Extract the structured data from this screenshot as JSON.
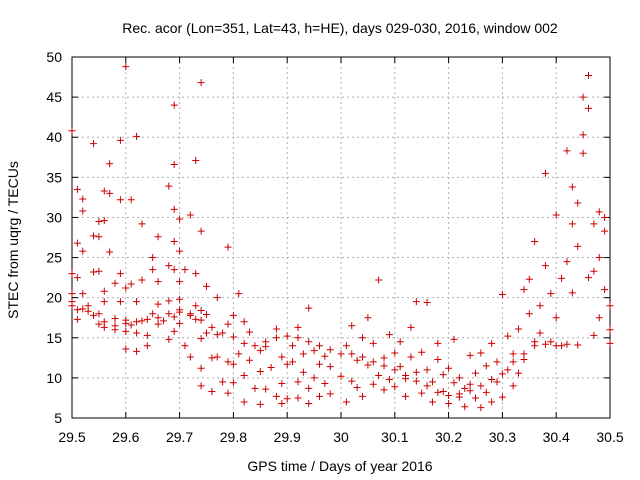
{
  "chart_data": {
    "type": "scatter",
    "title": "Rec. acor (Lon=351, Lat=43, h=HE), days 029-030, 2016, window 002",
    "xlabel": "GPS time / Days of year 2016",
    "ylabel": "STEC from uqrg / TECUs",
    "xlim": [
      29.5,
      30.5
    ],
    "ylim": [
      5,
      50
    ],
    "xticks": [
      29.5,
      29.6,
      29.7,
      29.8,
      29.9,
      30.0,
      30.1,
      30.2,
      30.3,
      30.4,
      30.5
    ],
    "xtick_labels": [
      "29.5",
      "29.6",
      "29.7",
      "29.8",
      "29.9",
      "30",
      "30.1",
      "30.2",
      "30.3",
      "30.4",
      "30.5"
    ],
    "yticks": [
      5,
      10,
      15,
      20,
      25,
      30,
      35,
      40,
      45,
      50
    ],
    "ytick_labels": [
      "5",
      "10",
      "15",
      "20",
      "25",
      "30",
      "35",
      "40",
      "45",
      "50"
    ],
    "grid": true,
    "legend": "none",
    "marker": "plus",
    "marker_color": "#cc0000",
    "series": [
      {
        "points": [
          [
            29.5,
            40.8
          ],
          [
            29.5,
            23.0
          ],
          [
            29.5,
            20.5
          ],
          [
            29.5,
            19.5
          ],
          [
            29.51,
            33.5
          ],
          [
            29.51,
            26.8
          ],
          [
            29.51,
            22.5
          ],
          [
            29.51,
            18.5
          ],
          [
            29.51,
            17.3
          ],
          [
            29.52,
            32.3
          ],
          [
            29.52,
            30.8
          ],
          [
            29.52,
            25.8
          ],
          [
            29.52,
            20.5
          ],
          [
            29.53,
            19.0
          ],
          [
            29.53,
            18.3
          ],
          [
            29.54,
            39.2
          ],
          [
            29.54,
            27.7
          ],
          [
            29.54,
            23.2
          ],
          [
            29.55,
            29.5
          ],
          [
            29.55,
            27.6
          ],
          [
            29.55,
            23.3
          ],
          [
            29.55,
            18.0
          ],
          [
            29.55,
            16.7
          ],
          [
            29.56,
            33.3
          ],
          [
            29.56,
            29.6
          ],
          [
            29.56,
            20.8
          ],
          [
            29.56,
            19.5
          ],
          [
            29.56,
            16.3
          ],
          [
            29.57,
            36.7
          ],
          [
            29.57,
            33.0
          ],
          [
            29.57,
            25.7
          ],
          [
            29.58,
            21.8
          ],
          [
            29.58,
            17.4
          ],
          [
            29.58,
            16.0
          ],
          [
            29.59,
            39.6
          ],
          [
            29.59,
            32.2
          ],
          [
            29.59,
            23.0
          ],
          [
            29.59,
            19.5
          ],
          [
            29.6,
            48.8
          ],
          [
            29.6,
            21.2
          ],
          [
            29.6,
            17.2
          ],
          [
            29.6,
            15.8
          ],
          [
            29.6,
            13.6
          ],
          [
            29.61,
            32.2
          ],
          [
            29.61,
            21.7
          ],
          [
            29.61,
            16.6
          ],
          [
            29.62,
            40.1
          ],
          [
            29.62,
            19.5
          ],
          [
            29.62,
            15.6
          ],
          [
            29.62,
            13.3
          ],
          [
            29.63,
            29.2
          ],
          [
            29.63,
            22.2
          ],
          [
            29.63,
            17.1
          ],
          [
            29.64,
            14.0
          ],
          [
            29.64,
            15.3
          ],
          [
            29.65,
            25.0
          ],
          [
            29.65,
            23.5
          ],
          [
            29.65,
            18.0
          ],
          [
            29.66,
            27.6
          ],
          [
            29.66,
            22.0
          ],
          [
            29.66,
            19.2
          ],
          [
            29.66,
            16.7
          ],
          [
            29.67,
            17.1
          ],
          [
            29.68,
            33.9
          ],
          [
            29.68,
            24.0
          ],
          [
            29.68,
            19.6
          ],
          [
            29.68,
            14.8
          ],
          [
            29.69,
            36.6
          ],
          [
            29.69,
            31.0
          ],
          [
            29.69,
            27.0
          ],
          [
            29.69,
            23.5
          ],
          [
            29.69,
            17.6
          ],
          [
            29.69,
            15.8
          ],
          [
            29.69,
            44.0
          ],
          [
            29.7,
            29.8
          ],
          [
            29.7,
            25.8
          ],
          [
            29.7,
            22.0
          ],
          [
            29.7,
            19.8
          ],
          [
            29.7,
            18.2
          ],
          [
            29.7,
            16.8
          ],
          [
            29.71,
            23.5
          ],
          [
            29.71,
            14.0
          ],
          [
            29.72,
            30.3
          ],
          [
            29.72,
            18.0
          ],
          [
            29.72,
            12.6
          ],
          [
            29.73,
            37.1
          ],
          [
            29.73,
            23.0
          ],
          [
            29.73,
            19.0
          ],
          [
            29.73,
            17.3
          ],
          [
            29.74,
            46.8
          ],
          [
            29.74,
            28.3
          ],
          [
            29.74,
            18.4
          ],
          [
            29.74,
            14.9
          ],
          [
            29.74,
            11.2
          ],
          [
            29.74,
            9.0
          ],
          [
            29.75,
            21.4
          ],
          [
            29.75,
            17.9
          ],
          [
            29.75,
            15.6
          ],
          [
            29.76,
            12.5
          ],
          [
            29.76,
            8.3
          ],
          [
            29.77,
            20.0
          ],
          [
            29.77,
            15.4
          ],
          [
            29.77,
            12.6
          ],
          [
            29.78,
            9.5
          ],
          [
            29.79,
            26.3
          ],
          [
            29.79,
            16.7
          ],
          [
            29.79,
            12.0
          ],
          [
            29.79,
            8.1
          ],
          [
            29.8,
            17.8
          ],
          [
            29.8,
            11.7
          ],
          [
            29.8,
            9.4
          ],
          [
            29.81,
            20.5
          ],
          [
            29.81,
            13.0
          ],
          [
            29.82,
            17.0
          ],
          [
            29.82,
            10.3
          ],
          [
            29.82,
            7.0
          ],
          [
            29.83,
            15.7
          ],
          [
            29.83,
            12.2
          ],
          [
            29.84,
            8.7
          ],
          [
            29.85,
            13.4
          ],
          [
            29.85,
            10.8
          ],
          [
            29.85,
            6.7
          ],
          [
            29.86,
            13.9
          ],
          [
            29.86,
            8.6
          ],
          [
            29.87,
            11.3
          ],
          [
            29.88,
            16.1
          ],
          [
            29.88,
            7.7
          ],
          [
            29.89,
            12.6
          ],
          [
            29.89,
            9.3
          ],
          [
            29.89,
            6.8
          ],
          [
            29.9,
            11.7
          ],
          [
            29.9,
            7.4
          ],
          [
            29.91,
            14.0
          ],
          [
            29.91,
            12.0
          ],
          [
            29.92,
            16.3
          ],
          [
            29.92,
            9.5
          ],
          [
            29.92,
            7.5
          ],
          [
            29.93,
            10.7
          ],
          [
            29.93,
            13.0
          ],
          [
            29.94,
            18.7
          ],
          [
            29.94,
            8.7
          ],
          [
            29.94,
            6.8
          ],
          [
            29.95,
            13.4
          ],
          [
            29.95,
            10.0
          ],
          [
            29.96,
            11.7
          ],
          [
            29.96,
            7.7
          ],
          [
            29.97,
            9.3
          ],
          [
            29.97,
            12.7
          ],
          [
            29.98,
            11.4
          ],
          [
            29.98,
            8.0
          ],
          [
            30.0,
            13.0
          ],
          [
            30.0,
            10.2
          ],
          [
            30.01,
            7.0
          ],
          [
            30.01,
            14.0
          ],
          [
            30.02,
            9.6
          ],
          [
            30.02,
            16.5
          ],
          [
            30.03,
            12.2
          ],
          [
            30.03,
            8.8
          ],
          [
            30.04,
            7.7
          ],
          [
            30.04,
            15.0
          ],
          [
            30.05,
            11.6
          ],
          [
            30.05,
            17.5
          ],
          [
            30.06,
            9.2
          ],
          [
            30.06,
            14.3
          ],
          [
            30.07,
            22.2
          ],
          [
            30.07,
            10.3
          ],
          [
            30.08,
            8.5
          ],
          [
            30.08,
            12.5
          ],
          [
            30.09,
            9.8
          ],
          [
            30.09,
            15.4
          ],
          [
            30.1,
            13.1
          ],
          [
            30.1,
            8.9
          ],
          [
            30.11,
            11.4
          ],
          [
            30.11,
            14.5
          ],
          [
            30.12,
            9.9
          ],
          [
            30.12,
            7.7
          ],
          [
            30.13,
            12.6
          ],
          [
            30.13,
            16.3
          ],
          [
            30.14,
            19.5
          ],
          [
            30.14,
            10.7
          ],
          [
            30.15,
            8.1
          ],
          [
            30.15,
            13.2
          ],
          [
            30.16,
            19.4
          ],
          [
            30.16,
            11.0
          ],
          [
            30.17,
            9.5
          ],
          [
            30.17,
            7.0
          ],
          [
            30.18,
            12.3
          ],
          [
            30.18,
            14.3
          ],
          [
            30.19,
            10.4
          ],
          [
            30.19,
            8.3
          ],
          [
            30.2,
            6.8
          ],
          [
            30.2,
            11.2
          ],
          [
            30.21,
            9.4
          ],
          [
            30.21,
            14.8
          ],
          [
            30.22,
            7.6
          ],
          [
            30.22,
            10.0
          ],
          [
            30.23,
            8.7
          ],
          [
            30.23,
            6.4
          ],
          [
            30.24,
            9.2
          ],
          [
            30.24,
            12.8
          ],
          [
            30.25,
            7.5
          ],
          [
            30.25,
            10.6
          ],
          [
            30.26,
            6.3
          ],
          [
            30.26,
            13.1
          ],
          [
            30.27,
            8.2
          ],
          [
            30.27,
            11.5
          ],
          [
            30.28,
            7.0
          ],
          [
            30.28,
            14.3
          ],
          [
            30.29,
            9.5
          ],
          [
            30.29,
            12.0
          ],
          [
            30.3,
            7.6
          ],
          [
            30.3,
            20.4
          ],
          [
            30.31,
            11.0
          ],
          [
            30.31,
            15.2
          ],
          [
            30.32,
            13.0
          ],
          [
            30.32,
            9.0
          ],
          [
            30.33,
            16.1
          ],
          [
            30.33,
            10.6
          ],
          [
            30.34,
            21.0
          ],
          [
            30.34,
            12.3
          ],
          [
            30.35,
            18.0
          ],
          [
            30.35,
            22.3
          ],
          [
            30.36,
            14.0
          ],
          [
            30.36,
            27.0
          ],
          [
            30.37,
            15.6
          ],
          [
            30.37,
            19.0
          ],
          [
            30.38,
            35.5
          ],
          [
            30.38,
            24.0
          ],
          [
            30.39,
            14.5
          ],
          [
            30.39,
            20.5
          ],
          [
            30.4,
            30.3
          ],
          [
            30.4,
            17.5
          ],
          [
            30.41,
            14.0
          ],
          [
            30.41,
            22.4
          ],
          [
            30.42,
            38.3
          ],
          [
            30.42,
            24.5
          ],
          [
            30.43,
            33.8
          ],
          [
            30.43,
            29.2
          ],
          [
            30.43,
            20.6
          ],
          [
            30.44,
            31.8
          ],
          [
            30.44,
            26.4
          ],
          [
            30.45,
            45.0
          ],
          [
            30.45,
            40.3
          ],
          [
            30.45,
            38.0
          ],
          [
            30.46,
            47.7
          ],
          [
            30.46,
            43.6
          ],
          [
            30.46,
            22.5
          ],
          [
            30.47,
            29.2
          ],
          [
            30.47,
            23.3
          ],
          [
            30.48,
            30.7
          ],
          [
            30.48,
            25.0
          ],
          [
            30.48,
            17.5
          ],
          [
            30.49,
            30.0
          ],
          [
            30.49,
            28.3
          ],
          [
            30.49,
            21.0
          ],
          [
            30.5,
            19.0
          ],
          [
            30.5,
            16.0
          ],
          [
            30.5,
            14.3
          ],
          [
            30.47,
            15.3
          ],
          [
            30.44,
            14.1
          ],
          [
            30.42,
            14.2
          ],
          [
            30.4,
            14.0
          ],
          [
            30.38,
            14.2
          ],
          [
            30.36,
            14.5
          ],
          [
            30.34,
            13.0
          ],
          [
            30.32,
            12.0
          ],
          [
            30.3,
            10.5
          ],
          [
            30.28,
            9.8
          ],
          [
            30.26,
            9.0
          ],
          [
            30.24,
            8.4
          ],
          [
            30.22,
            8.0
          ],
          [
            30.2,
            7.8
          ],
          [
            30.18,
            8.2
          ],
          [
            30.16,
            9.0
          ],
          [
            30.14,
            9.6
          ],
          [
            30.12,
            10.3
          ],
          [
            30.1,
            11.0
          ],
          [
            30.08,
            11.5
          ],
          [
            30.06,
            12.0
          ],
          [
            30.04,
            12.6
          ],
          [
            30.02,
            13.0
          ],
          [
            29.98,
            13.5
          ],
          [
            29.96,
            14.0
          ],
          [
            29.94,
            14.5
          ],
          [
            29.92,
            15.0
          ],
          [
            29.9,
            15.2
          ],
          [
            29.88,
            15.0
          ],
          [
            29.86,
            14.5
          ],
          [
            29.84,
            14.0
          ],
          [
            29.82,
            14.3
          ],
          [
            29.8,
            15.1
          ],
          [
            29.78,
            15.6
          ],
          [
            29.76,
            16.3
          ],
          [
            29.74,
            17.2
          ],
          [
            29.72,
            17.8
          ],
          [
            29.7,
            18.5
          ],
          [
            29.68,
            18.0
          ],
          [
            29.66,
            17.5
          ],
          [
            29.64,
            17.3
          ],
          [
            29.62,
            17.0
          ],
          [
            29.6,
            16.8
          ],
          [
            29.58,
            16.5
          ],
          [
            29.56,
            17.0
          ],
          [
            29.54,
            17.8
          ],
          [
            29.52,
            18.6
          ],
          [
            29.5,
            19.0
          ]
        ]
      }
    ]
  }
}
